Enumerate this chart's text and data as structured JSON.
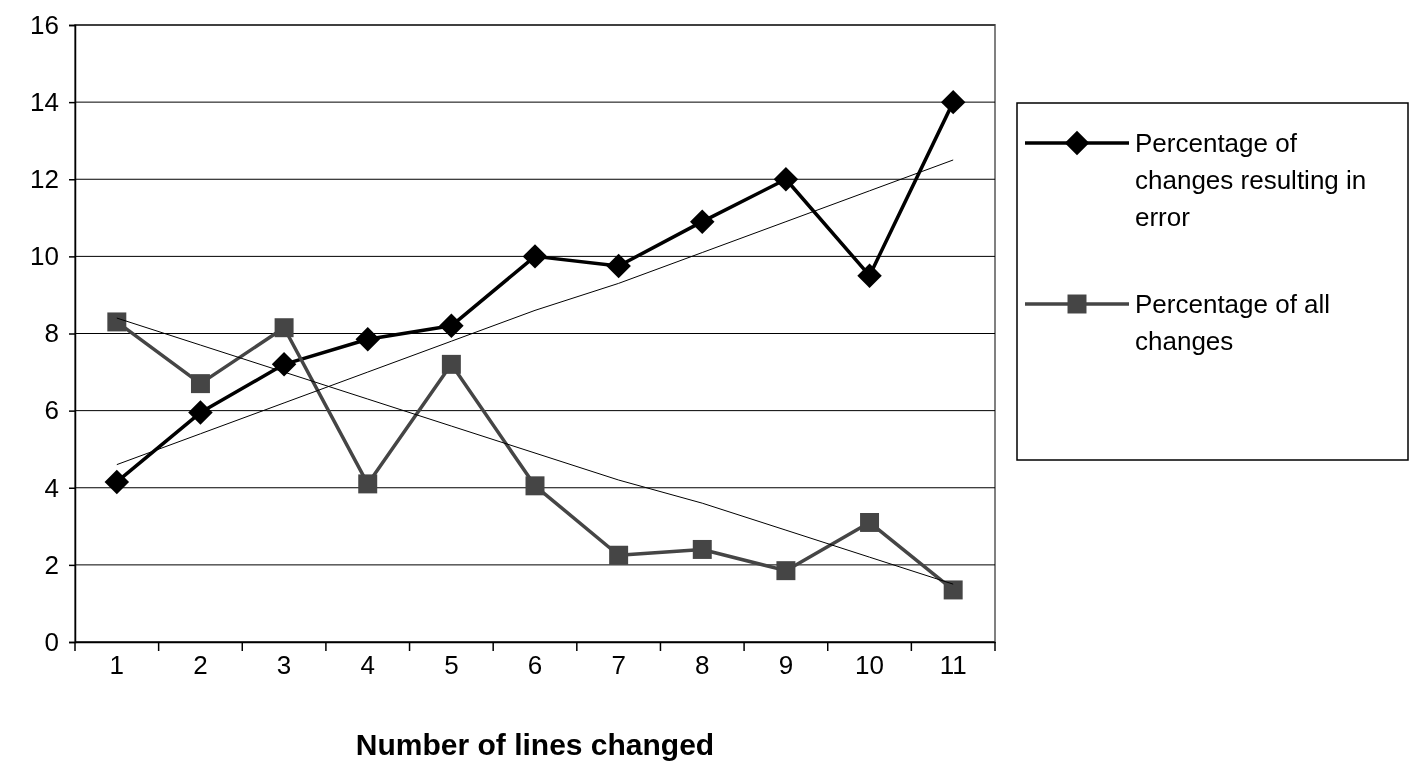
{
  "chart_data": {
    "type": "line",
    "xlabel": "Number of lines changed",
    "categories": [
      "1",
      "2",
      "3",
      "4",
      "5",
      "6",
      "7",
      "8",
      "9",
      "10",
      "11"
    ],
    "ylim": [
      0,
      16
    ],
    "yticks": [
      0,
      2,
      4,
      6,
      8,
      10,
      12,
      14,
      16
    ],
    "grid": "y",
    "legend": "right",
    "series": [
      {
        "name": "Percentage of changes resulting in error",
        "color": "#000000",
        "marker": "diamond",
        "values": [
          4.15,
          5.95,
          7.2,
          7.85,
          8.2,
          10.0,
          9.75,
          10.9,
          12.0,
          9.5,
          14.0
        ]
      },
      {
        "name": "Percentage of all changes",
        "color": "#454545",
        "marker": "square",
        "values": [
          8.3,
          6.7,
          8.15,
          4.1,
          7.2,
          4.05,
          2.25,
          2.4,
          1.85,
          3.1,
          1.35
        ]
      },
      {
        "color": "#000000",
        "marker": "none",
        "values": [
          4.6,
          5.4,
          6.2,
          7.0,
          7.8,
          8.6,
          9.3,
          10.1,
          10.9,
          11.7,
          12.5
        ]
      },
      {
        "color": "#000000",
        "marker": "none",
        "values": [
          8.4,
          7.7,
          7.0,
          6.3,
          5.6,
          4.9,
          4.2,
          3.6,
          2.9,
          2.2,
          1.5
        ]
      }
    ]
  }
}
